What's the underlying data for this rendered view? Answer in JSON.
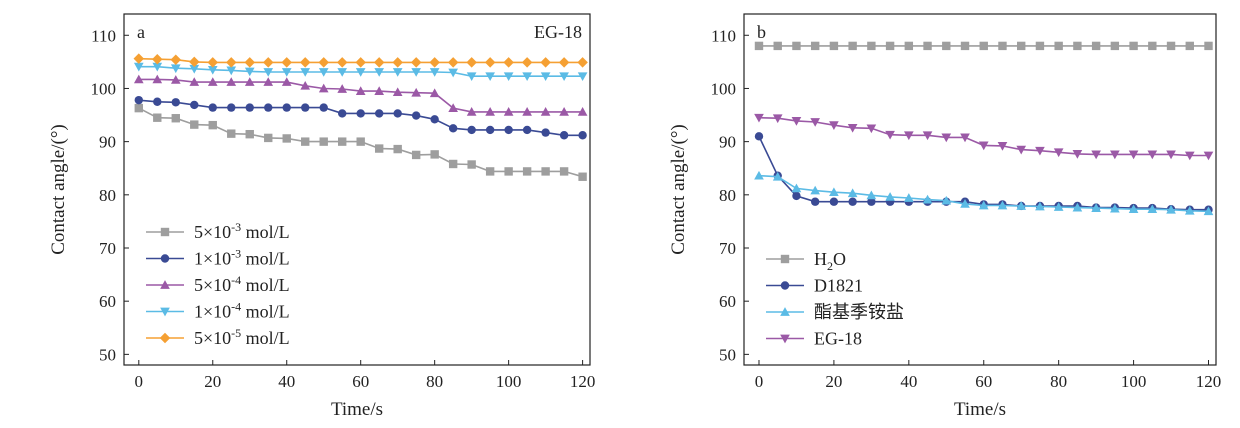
{
  "chart_data": [
    {
      "type": "line",
      "panel_label": "a",
      "annotation": "EG-18",
      "xlabel": "Time/s",
      "ylabel": "Contact angle/(°)",
      "xlim": [
        -4,
        122
      ],
      "ylim": [
        48,
        114
      ],
      "xticks": [
        0,
        20,
        40,
        60,
        80,
        100,
        120
      ],
      "yticks": [
        50,
        60,
        70,
        80,
        90,
        100,
        110
      ],
      "grid": false,
      "legend_position": "bottom-left",
      "x": [
        0,
        5,
        10,
        15,
        20,
        25,
        30,
        35,
        40,
        45,
        50,
        55,
        60,
        65,
        70,
        75,
        80,
        85,
        90,
        95,
        100,
        105,
        110,
        115,
        120
      ],
      "series": [
        {
          "name": "5×10",
          "exp": "-3",
          "unit": " mol/L",
          "color": "#9e9e9e",
          "marker": "square",
          "values": [
            96.3,
            94.5,
            94.4,
            93.2,
            93.1,
            91.5,
            91.4,
            90.7,
            90.6,
            90.0,
            90.0,
            90.0,
            90.0,
            88.7,
            88.6,
            87.5,
            87.6,
            85.8,
            85.7,
            84.4,
            84.4,
            84.4,
            84.4,
            84.4,
            83.4
          ]
        },
        {
          "name": "1×10",
          "exp": "-3",
          "unit": " mol/L",
          "color": "#3a4a94",
          "marker": "circle",
          "values": [
            97.8,
            97.5,
            97.4,
            96.9,
            96.4,
            96.4,
            96.4,
            96.4,
            96.4,
            96.4,
            96.4,
            95.3,
            95.3,
            95.3,
            95.3,
            94.9,
            94.2,
            92.5,
            92.2,
            92.2,
            92.2,
            92.2,
            91.7,
            91.2,
            91.2
          ]
        },
        {
          "name": "5×10",
          "exp": "-4",
          "unit": " mol/L",
          "color": "#9b59a6",
          "marker": "triangle-up",
          "values": [
            101.7,
            101.7,
            101.6,
            101.2,
            101.2,
            101.2,
            101.2,
            101.2,
            101.2,
            100.5,
            100.0,
            99.9,
            99.5,
            99.5,
            99.3,
            99.2,
            99.1,
            96.3,
            95.6,
            95.6,
            95.6,
            95.6,
            95.6,
            95.6,
            95.6
          ]
        },
        {
          "name": "1×10",
          "exp": "-4",
          "unit": " mol/L",
          "color": "#5bbbe5",
          "marker": "triangle-down",
          "values": [
            104.1,
            104.1,
            103.8,
            103.7,
            103.5,
            103.4,
            103.2,
            103.1,
            103.1,
            103.1,
            103.1,
            103.1,
            103.1,
            103.1,
            103.1,
            103.1,
            103.1,
            103.0,
            102.3,
            102.3,
            102.3,
            102.3,
            102.3,
            102.3,
            102.3
          ]
        },
        {
          "name": "5×10",
          "exp": "-5",
          "unit": " mol/L",
          "color": "#f5a033",
          "marker": "diamond",
          "values": [
            105.6,
            105.5,
            105.4,
            105.0,
            104.9,
            104.9,
            104.9,
            104.9,
            104.9,
            104.9,
            104.9,
            104.9,
            104.9,
            104.9,
            104.9,
            104.9,
            104.9,
            104.9,
            104.9,
            104.9,
            104.9,
            104.9,
            104.9,
            104.9,
            104.9
          ]
        }
      ]
    },
    {
      "type": "line",
      "panel_label": "b",
      "xlabel": "Time/s",
      "ylabel": "Contact angle/(°)",
      "xlim": [
        -4,
        122
      ],
      "ylim": [
        48,
        114
      ],
      "xticks": [
        0,
        20,
        40,
        60,
        80,
        100,
        120
      ],
      "yticks": [
        50,
        60,
        70,
        80,
        90,
        100,
        110
      ],
      "grid": false,
      "legend_position": "bottom-left",
      "x": [
        0,
        5,
        10,
        15,
        20,
        25,
        30,
        35,
        40,
        45,
        50,
        55,
        60,
        65,
        70,
        75,
        80,
        85,
        90,
        95,
        100,
        105,
        110,
        115,
        120
      ],
      "series": [
        {
          "name": "H",
          "sub": "2",
          "suffix": "O",
          "color": "#9e9e9e",
          "marker": "square",
          "values": [
            108.0,
            108.0,
            108.0,
            108.0,
            108.0,
            108.0,
            108.0,
            108.0,
            108.0,
            108.0,
            108.0,
            108.0,
            108.0,
            108.0,
            108.0,
            108.0,
            108.0,
            108.0,
            108.0,
            108.0,
            108.0,
            108.0,
            108.0,
            108.0,
            108.0
          ]
        },
        {
          "name": "D1821",
          "color": "#3a4a94",
          "marker": "circle",
          "values": [
            91.0,
            83.6,
            79.8,
            78.7,
            78.7,
            78.7,
            78.7,
            78.7,
            78.7,
            78.7,
            78.7,
            78.7,
            78.2,
            78.2,
            77.9,
            77.9,
            77.9,
            77.9,
            77.6,
            77.6,
            77.5,
            77.5,
            77.3,
            77.2,
            77.2
          ]
        },
        {
          "name": "酯基季铵盐",
          "color": "#5bbbe5",
          "marker": "triangle-up",
          "values": [
            83.6,
            83.4,
            81.2,
            80.8,
            80.5,
            80.3,
            79.9,
            79.6,
            79.4,
            79.1,
            78.9,
            78.3,
            78.0,
            78.0,
            77.9,
            77.8,
            77.7,
            77.6,
            77.5,
            77.4,
            77.3,
            77.3,
            77.2,
            77.0,
            76.9
          ]
        },
        {
          "name": "EG-18",
          "color": "#9b59a6",
          "marker": "triangle-down",
          "values": [
            94.5,
            94.4,
            93.9,
            93.7,
            93.1,
            92.6,
            92.5,
            91.3,
            91.2,
            91.2,
            90.8,
            90.8,
            89.3,
            89.2,
            88.5,
            88.3,
            88.0,
            87.7,
            87.6,
            87.6,
            87.6,
            87.6,
            87.6,
            87.4,
            87.4
          ]
        }
      ]
    }
  ]
}
